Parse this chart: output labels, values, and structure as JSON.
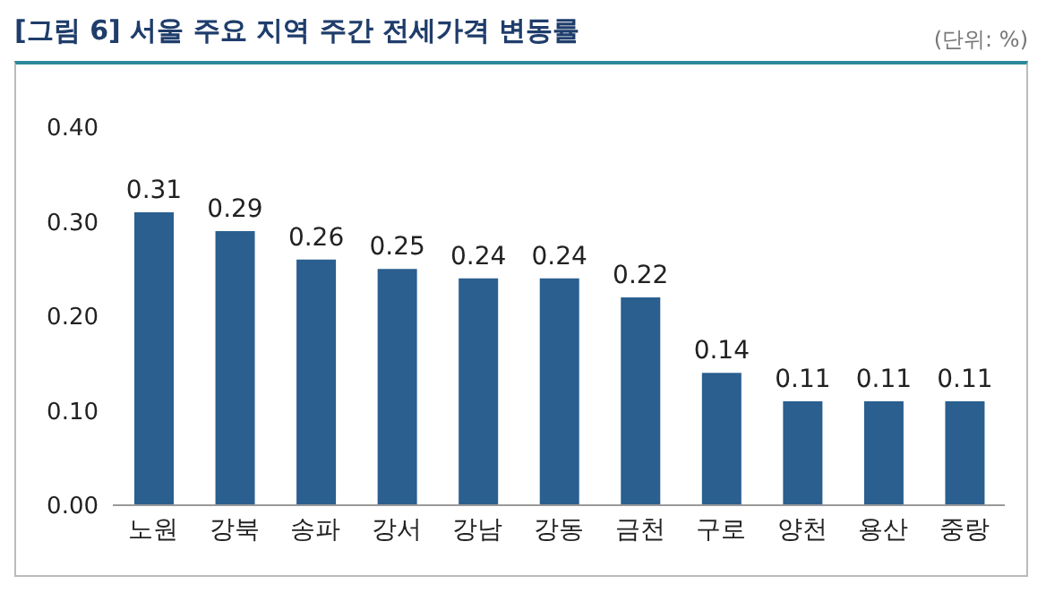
{
  "chart_data": {
    "type": "bar",
    "title": "[그림 6] 서울 주요 지역 주간 전세가격 변동률",
    "annotations": [
      "(단위: %)"
    ],
    "categories": [
      "노원",
      "강북",
      "송파",
      "강서",
      "강남",
      "강동",
      "금천",
      "구로",
      "양천",
      "용산",
      "중랑"
    ],
    "values": [
      0.31,
      0.29,
      0.26,
      0.25,
      0.24,
      0.24,
      0.22,
      0.14,
      0.11,
      0.11,
      0.11
    ],
    "color": "#2a5f8f",
    "data_labels": true,
    "grid": false,
    "ylim": [
      0,
      0.4
    ],
    "yticks": [
      {
        "value": 0,
        "label": "0.00"
      },
      {
        "value": 0.1,
        "label": "0.10"
      },
      {
        "value": 0.2,
        "label": "0.20"
      },
      {
        "value": 0.3,
        "label": "0.30"
      },
      {
        "value": 0.4,
        "label": "0.40"
      }
    ]
  }
}
